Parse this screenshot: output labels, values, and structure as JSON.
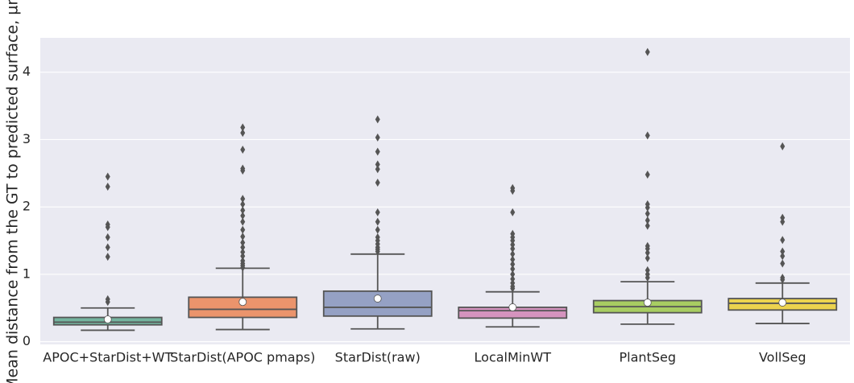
{
  "chart_data": {
    "type": "box",
    "ylabel": "Mean distance from the GT to predicted surface, µm",
    "categories": [
      "APOC+StarDist+WT",
      "StarDist(APOC pmaps)",
      "StarDist(raw)",
      "LocalMinWT",
      "PlantSeg",
      "VollSeg"
    ],
    "boxes": [
      {
        "color": "#74b49f",
        "whislo": 0.17,
        "q1": 0.25,
        "median": 0.29,
        "q3": 0.36,
        "whishi": 0.5,
        "mean": 0.33,
        "outliers": [
          2.45,
          2.3,
          1.74,
          1.7,
          1.55,
          1.4,
          1.26,
          0.63,
          0.59
        ]
      },
      {
        "color": "#eb946c",
        "whislo": 0.18,
        "q1": 0.36,
        "median": 0.48,
        "q3": 0.66,
        "whishi": 1.09,
        "mean": 0.59,
        "outliers": [
          3.18,
          3.1,
          2.85,
          2.57,
          2.54,
          2.12,
          2.04,
          1.95,
          1.87,
          1.78,
          1.66,
          1.56,
          1.47,
          1.4,
          1.33,
          1.27,
          1.2,
          1.16,
          1.13,
          1.1
        ]
      },
      {
        "color": "#95a1c4",
        "whislo": 0.19,
        "q1": 0.38,
        "median": 0.51,
        "q3": 0.75,
        "whishi": 1.3,
        "mean": 0.64,
        "outliers": [
          3.3,
          3.03,
          2.82,
          2.63,
          2.56,
          2.36,
          1.92,
          1.78,
          1.66,
          1.55,
          1.5,
          1.45,
          1.4,
          1.37,
          1.34
        ]
      },
      {
        "color": "#d593be",
        "whislo": 0.22,
        "q1": 0.35,
        "median": 0.46,
        "q3": 0.51,
        "whishi": 0.74,
        "mean": 0.51,
        "outliers": [
          2.28,
          2.24,
          1.92,
          1.6,
          1.55,
          1.5,
          1.44,
          1.38,
          1.3,
          1.22,
          1.15,
          1.08,
          1.0,
          0.93,
          0.87,
          0.82,
          0.79
        ]
      },
      {
        "color": "#a8cd62",
        "whislo": 0.26,
        "q1": 0.43,
        "median": 0.52,
        "q3": 0.61,
        "whishi": 0.89,
        "mean": 0.58,
        "outliers": [
          4.3,
          3.06,
          2.48,
          2.04,
          1.99,
          1.9,
          1.8,
          1.72,
          1.42,
          1.38,
          1.32,
          1.24,
          1.06,
          1.0,
          0.95
        ]
      },
      {
        "color": "#ecd34e",
        "whislo": 0.27,
        "q1": 0.47,
        "median": 0.57,
        "q3": 0.64,
        "whishi": 0.87,
        "mean": 0.58,
        "outliers": [
          2.9,
          1.84,
          1.78,
          1.51,
          1.34,
          1.27,
          1.16,
          0.95,
          0.92
        ]
      }
    ],
    "ylim": [
      -0.04,
      4.51
    ],
    "yticks": [
      0,
      1,
      2,
      3,
      4
    ],
    "grid": true
  }
}
